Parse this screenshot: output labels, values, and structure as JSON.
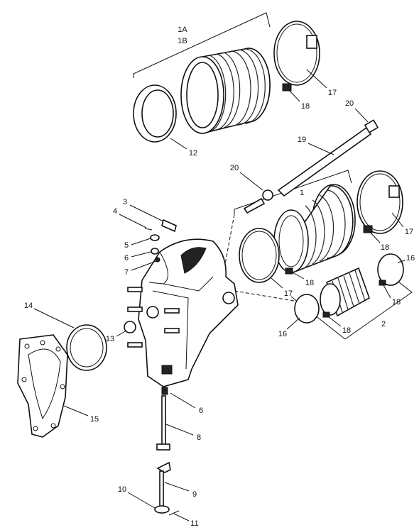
{
  "callouts": [
    {
      "label": "1A"
    },
    {
      "label": "1B"
    },
    {
      "label": "17"
    },
    {
      "label": "18"
    },
    {
      "label": "20"
    },
    {
      "label": "19"
    },
    {
      "label": "12"
    },
    {
      "label": "20"
    },
    {
      "label": "1"
    },
    {
      "label": "17"
    },
    {
      "label": "3"
    },
    {
      "label": "4"
    },
    {
      "label": "5"
    },
    {
      "label": "6"
    },
    {
      "label": "7"
    },
    {
      "label": "18"
    },
    {
      "label": "16"
    },
    {
      "label": "18"
    },
    {
      "label": "17"
    },
    {
      "label": "18"
    },
    {
      "label": "16"
    },
    {
      "label": "2"
    },
    {
      "label": "18"
    },
    {
      "label": "14"
    },
    {
      "label": "13"
    },
    {
      "label": "15"
    },
    {
      "label": "6"
    },
    {
      "label": "8"
    },
    {
      "label": "9"
    },
    {
      "label": "10"
    },
    {
      "label": "11"
    }
  ]
}
